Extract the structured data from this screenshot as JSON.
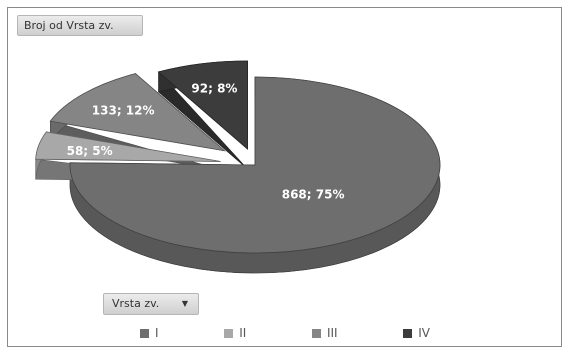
{
  "chart_data": {
    "type": "pie",
    "style": "3d-exploded",
    "categories": [
      "I",
      "II",
      "III",
      "IV"
    ],
    "values": [
      868,
      58,
      133,
      92
    ],
    "percents": [
      75,
      5,
      12,
      8
    ],
    "data_labels": [
      "868; 75%",
      "58; 5%",
      "133; 12%",
      "92; 8%"
    ],
    "colors": [
      "#6e6e6e",
      "#a8a8a8",
      "#858585",
      "#3c3c3c"
    ],
    "legend_position": "bottom",
    "title": ""
  },
  "data_field_button": "Broj od Vrsta zv.",
  "axis_field_button": "Vrsta zv.",
  "axis_field_arrow": "▼"
}
